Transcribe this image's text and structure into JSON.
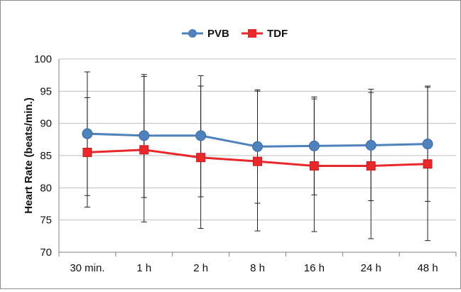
{
  "chart_data": {
    "type": "line",
    "categories": [
      "30 min.",
      "1 h",
      "2 h",
      "8 h",
      "16 h",
      "24 h",
      "48 h"
    ],
    "series": [
      {
        "name": "PVB",
        "color": "#4f81bd",
        "marker": "circle",
        "values": [
          88.4,
          88.1,
          88.1,
          86.4,
          86.5,
          86.6,
          86.8
        ],
        "error_low": [
          78.8,
          78.5,
          78.6,
          77.6,
          78.9,
          78.0,
          77.9
        ],
        "error_high": [
          98.0,
          97.6,
          97.4,
          95.2,
          94.1,
          95.3,
          95.8
        ]
      },
      {
        "name": "TDF",
        "color": "#e8282b",
        "marker": "square",
        "values": [
          85.5,
          85.9,
          84.7,
          84.1,
          83.4,
          83.4,
          83.7
        ],
        "error_low": [
          77.0,
          74.7,
          73.7,
          73.3,
          73.2,
          72.1,
          71.8
        ],
        "error_high": [
          94.0,
          97.3,
          95.8,
          95.0,
          93.8,
          94.8,
          95.6
        ]
      }
    ],
    "ylabel": "Heart Rate (beats/min.)",
    "xlabel": "",
    "ylim": [
      70,
      100
    ],
    "yticks": [
      "70",
      "75",
      "80",
      "85",
      "90",
      "95",
      "100"
    ],
    "grid": true,
    "legend_position": "top-center"
  }
}
